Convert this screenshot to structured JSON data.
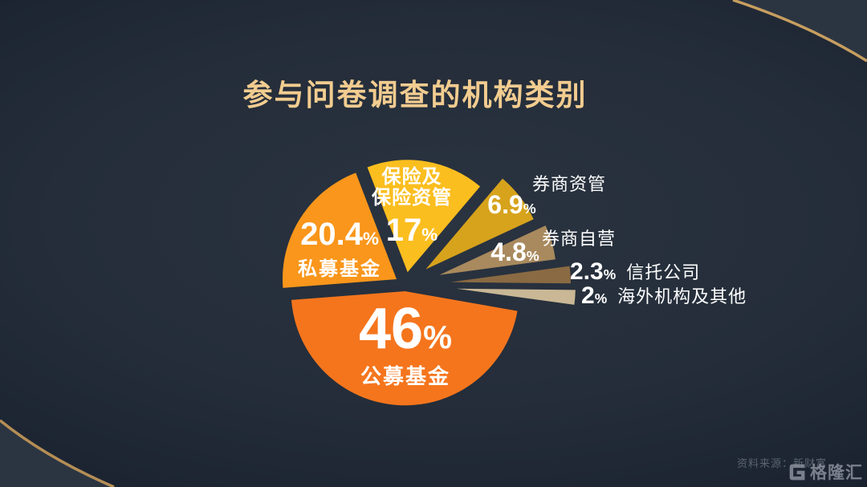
{
  "page": {
    "title": "参与问卷调查的机构类别",
    "source": "资料来源：新财富",
    "brand": "格隆汇"
  },
  "theme": {
    "background": "#232c38",
    "title_color": "#f2cc90",
    "gold_accent": "#c79e60",
    "label_color": "#ffffff",
    "source_color": "#59646f"
  },
  "chart_data": {
    "type": "pie",
    "title": "参与问卷调查的机构类别",
    "unit": "%",
    "legend_position": "labels-on-and-beside-slices",
    "slices": [
      {
        "key": "public-funds",
        "label": "公募基金",
        "value": 46,
        "num": "46",
        "sym": "%",
        "color": "#f5751d"
      },
      {
        "key": "private-funds",
        "label": "私募基金",
        "value": 20.4,
        "num": "20.4",
        "sym": "%",
        "color": "#f9961b"
      },
      {
        "key": "insurance-am",
        "label": "保险及保险资管",
        "label_line1": "保险及",
        "label_line2": "保险资管",
        "value": 17,
        "num": "17",
        "sym": "%",
        "color": "#fbbe1f"
      },
      {
        "key": "broker-am",
        "label": "券商资管",
        "value": 6.9,
        "num": "6.9",
        "sym": "%",
        "color": "#d7a31c"
      },
      {
        "key": "broker-proprietary",
        "label": "券商自营",
        "value": 4.8,
        "num": "4.8",
        "sym": "%",
        "color": "#a98a5e"
      },
      {
        "key": "trust-companies",
        "label": "信托公司",
        "value": 2.3,
        "num": "2.3",
        "sym": "%",
        "color": "#8a6a43"
      },
      {
        "key": "overseas-and-others",
        "label": "海外机构及其他",
        "value": 2,
        "num": "2",
        "sym": "%",
        "color": "#c9b795"
      }
    ]
  }
}
